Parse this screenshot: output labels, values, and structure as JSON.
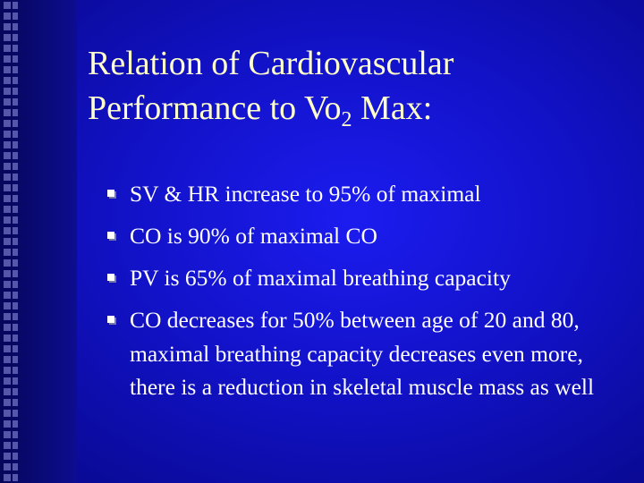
{
  "title": {
    "line1": "Relation of Cardiovascular",
    "line2_main": "Performance to Vo",
    "line2_sub": "2",
    "line2_end": " Max:"
  },
  "bullets": [
    "SV & HR increase to 95% of maximal",
    "CO is 90% of maximal CO",
    "PV is 65% of maximal breathing capacity",
    "CO decreases for 50% between age of 20 and 80, maximal breathing capacity decreases even more, there is a reduction in skeletal muscle mass as well"
  ]
}
